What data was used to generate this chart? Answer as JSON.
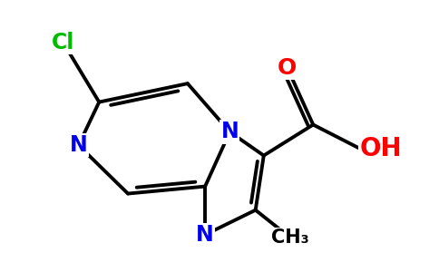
{
  "background_color": "#ffffff",
  "bond_color": "#000000",
  "bond_width": 2.8,
  "atom_colors": {
    "N": "#0000ee",
    "O": "#ff0000",
    "Cl": "#00bb00",
    "C": "#000000"
  },
  "font_size_N": 17,
  "font_size_Cl": 17,
  "font_size_O": 18,
  "font_size_OH": 20,
  "font_size_CH3": 15,
  "figsize": [
    4.84,
    3.0
  ],
  "dpi": 100
}
